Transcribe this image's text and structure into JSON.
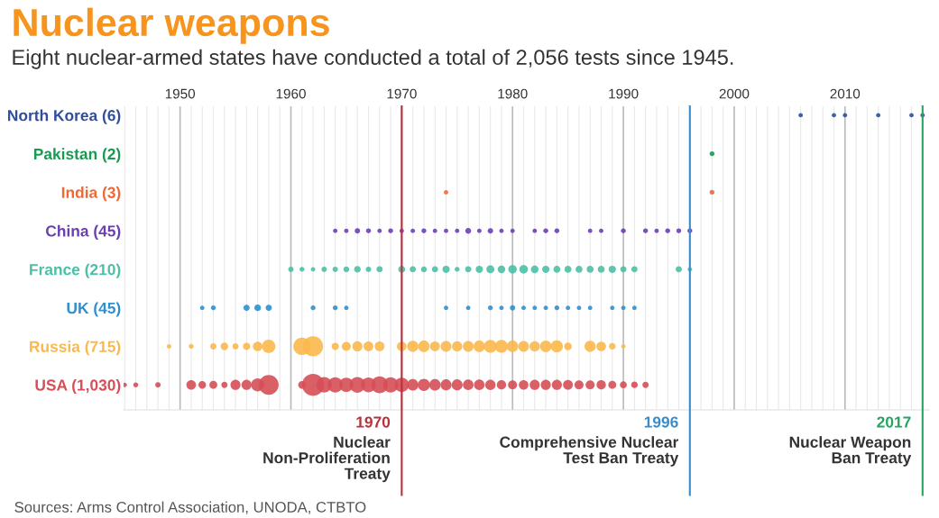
{
  "chart_data": {
    "type": "bubble",
    "title": "Nuclear weapons",
    "subtitle": "Eight nuclear-armed states have conducted a total of 2,056 tests since 1945.",
    "orientation": "horizontal",
    "categories": [
      "North Korea (6)",
      "Pakistan (2)",
      "India (3)",
      "China (45)",
      "France (210)",
      "UK (45)",
      "Russia (715)",
      "USA (1,030)"
    ],
    "colors": [
      "#2f4f9e",
      "#1a9a50",
      "#ee6a35",
      "#6a3fb5",
      "#4dbfa6",
      "#2f8fd0",
      "#fbb84d",
      "#d64f58"
    ],
    "xlim": [
      1944.9,
      2017.6
    ],
    "xticks": [
      {
        "value": 1950,
        "label": "1950"
      },
      {
        "value": 1960,
        "label": "1960"
      },
      {
        "value": 1970,
        "label": "1970"
      },
      {
        "value": 1980,
        "label": "1980"
      },
      {
        "value": 1990,
        "label": "1990"
      },
      {
        "value": 2000,
        "label": "2000"
      },
      {
        "value": 2010,
        "label": "2010"
      }
    ],
    "grid": "x",
    "series": [
      {
        "values": [
          null,
          null,
          null,
          null,
          null,
          null,
          null,
          1945
        ],
        "sizes": [
          null,
          null,
          null,
          null,
          null,
          null,
          null,
          0.04
        ],
        "colors": [
          null,
          null,
          null,
          null,
          null,
          null,
          null,
          "#d64f58"
        ]
      },
      {
        "values": [
          null,
          null,
          null,
          null,
          null,
          null,
          null,
          1946
        ],
        "sizes": [
          null,
          null,
          null,
          null,
          null,
          null,
          null,
          0.05
        ],
        "colors": [
          null,
          null,
          null,
          null,
          null,
          null,
          null,
          "#d64f58"
        ]
      },
      {
        "values": [
          null,
          null,
          null,
          null,
          null,
          null,
          null,
          1948
        ],
        "sizes": [
          null,
          null,
          null,
          null,
          null,
          null,
          null,
          0.06
        ],
        "colors": [
          null,
          null,
          null,
          null,
          null,
          null,
          null,
          "#d64f58"
        ]
      },
      {
        "values": [
          null,
          null,
          null,
          null,
          null,
          null,
          1949,
          null
        ],
        "sizes": [
          null,
          null,
          null,
          null,
          null,
          null,
          0.04,
          null
        ],
        "colors": [
          null,
          null,
          null,
          null,
          null,
          null,
          "#fbb84d",
          null
        ]
      },
      {
        "values": [
          null,
          null,
          null,
          null,
          null,
          null,
          1951,
          1951
        ],
        "sizes": [
          null,
          null,
          null,
          null,
          null,
          null,
          0.05,
          0.19
        ],
        "colors": [
          null,
          null,
          null,
          null,
          null,
          null,
          "#fbb84d",
          "#d64f58"
        ]
      },
      {
        "values": [
          null,
          null,
          null,
          null,
          null,
          1952,
          null,
          1952
        ],
        "sizes": [
          null,
          null,
          null,
          null,
          null,
          0.04,
          null,
          0.12
        ],
        "colors": [
          null,
          null,
          null,
          null,
          null,
          "#2f8fd0",
          null,
          "#d64f58"
        ]
      },
      {
        "values": [
          null,
          null,
          null,
          null,
          null,
          1953,
          1953,
          1953
        ],
        "sizes": [
          null,
          null,
          null,
          null,
          null,
          0.05,
          0.08,
          0.13
        ],
        "colors": [
          null,
          null,
          null,
          null,
          null,
          "#2f8fd0",
          "#fbb84d",
          "#d64f58"
        ]
      },
      {
        "values": [
          null,
          null,
          null,
          null,
          null,
          null,
          1954,
          1954
        ],
        "sizes": [
          null,
          null,
          null,
          null,
          null,
          null,
          0.12,
          0.08
        ],
        "colors": [
          null,
          null,
          null,
          null,
          null,
          null,
          "#fbb84d",
          "#d64f58"
        ]
      },
      {
        "values": [
          null,
          null,
          null,
          null,
          null,
          null,
          1955,
          1955
        ],
        "sizes": [
          null,
          null,
          null,
          null,
          null,
          null,
          0.08,
          0.21
        ],
        "colors": [
          null,
          null,
          null,
          null,
          null,
          null,
          "#fbb84d",
          "#d64f58"
        ]
      },
      {
        "values": [
          null,
          null,
          null,
          null,
          null,
          1956,
          1956,
          1956
        ],
        "sizes": [
          null,
          null,
          null,
          null,
          null,
          0.08,
          0.11,
          0.21
        ],
        "colors": [
          null,
          null,
          null,
          null,
          null,
          "#2f8fd0",
          "#fbb84d",
          "#d64f58"
        ]
      },
      {
        "values": [
          null,
          null,
          null,
          null,
          null,
          1957,
          1957,
          1957
        ],
        "sizes": [
          null,
          null,
          null,
          null,
          null,
          0.09,
          0.19,
          0.35
        ],
        "colors": [
          null,
          null,
          null,
          null,
          null,
          "#2f8fd0",
          "#fbb84d",
          "#d64f58"
        ]
      },
      {
        "values": [
          null,
          null,
          null,
          null,
          null,
          1958,
          1958,
          1958
        ],
        "sizes": [
          null,
          null,
          null,
          null,
          null,
          0.08,
          0.37,
          0.81
        ],
        "colors": [
          null,
          null,
          null,
          null,
          null,
          "#2f8fd0",
          "#fbb84d",
          "#d64f58"
        ]
      },
      {
        "values": [
          null,
          null,
          null,
          null,
          1960,
          null,
          null,
          null
        ],
        "sizes": [
          null,
          null,
          null,
          null,
          0.06,
          null,
          null,
          null
        ],
        "colors": [
          null,
          null,
          null,
          null,
          "#4dbfa6",
          null,
          null,
          null
        ]
      },
      {
        "values": [
          null,
          null,
          null,
          null,
          1961,
          null,
          1961,
          1961
        ],
        "sizes": [
          null,
          null,
          null,
          null,
          0.05,
          null,
          0.62,
          0.12
        ],
        "colors": [
          null,
          null,
          null,
          null,
          "#4dbfa6",
          null,
          "#fbb84d",
          "#d64f58"
        ]
      },
      {
        "values": [
          null,
          null,
          null,
          null,
          1962,
          1962,
          1962,
          1962
        ],
        "sizes": [
          null,
          null,
          null,
          null,
          0.04,
          0.05,
          0.83,
          1
        ],
        "colors": [
          null,
          null,
          null,
          null,
          "#4dbfa6",
          "#2f8fd0",
          "#fbb84d",
          "#d64f58"
        ]
      },
      {
        "values": [
          null,
          null,
          null,
          null,
          1963,
          null,
          null,
          1963
        ],
        "sizes": [
          null,
          null,
          null,
          null,
          0.06,
          null,
          null,
          0.5
        ],
        "colors": [
          null,
          null,
          null,
          null,
          "#4dbfa6",
          null,
          null,
          "#d64f58"
        ]
      },
      {
        "values": [
          null,
          null,
          null,
          1964,
          1964,
          1964,
          1964,
          1964
        ],
        "sizes": [
          null,
          null,
          null,
          0.04,
          0.06,
          0.05,
          0.11,
          0.48
        ],
        "colors": [
          null,
          null,
          null,
          "#6a3fb5",
          "#4dbfa6",
          "#2f8fd0",
          "#fbb84d",
          "#d64f58"
        ]
      },
      {
        "values": [
          null,
          null,
          null,
          1965,
          1965,
          1965,
          1965,
          1965
        ],
        "sizes": [
          null,
          null,
          null,
          0.04,
          0.07,
          0.04,
          0.17,
          0.42
        ],
        "colors": [
          null,
          null,
          null,
          "#6a3fb5",
          "#4dbfa6",
          "#2f8fd0",
          "#fbb84d",
          "#d64f58"
        ]
      },
      {
        "values": [
          null,
          null,
          null,
          1966,
          1966,
          null,
          1966,
          1966
        ],
        "sizes": [
          null,
          null,
          null,
          0.06,
          0.09,
          null,
          0.21,
          0.51
        ],
        "colors": [
          null,
          null,
          null,
          "#6a3fb5",
          "#4dbfa6",
          null,
          "#fbb84d",
          "#d64f58"
        ]
      },
      {
        "values": [
          null,
          null,
          null,
          1967,
          1967,
          null,
          1967,
          1967
        ],
        "sizes": [
          null,
          null,
          null,
          0.05,
          0.06,
          null,
          0.2,
          0.46
        ],
        "colors": [
          null,
          null,
          null,
          "#6a3fb5",
          "#4dbfa6",
          null,
          "#fbb84d",
          "#d64f58"
        ]
      },
      {
        "values": [
          null,
          null,
          null,
          1968,
          1968,
          null,
          1968,
          1968
        ],
        "sizes": [
          null,
          null,
          null,
          0.04,
          0.08,
          null,
          0.2,
          0.59
        ],
        "colors": [
          null,
          null,
          null,
          "#6a3fb5",
          "#4dbfa6",
          null,
          "#fbb84d",
          "#d64f58"
        ]
      },
      {
        "values": [
          null,
          null,
          null,
          1969,
          null,
          null,
          null,
          1969
        ],
        "sizes": [
          null,
          null,
          null,
          0.05,
          null,
          null,
          null,
          0.49
        ],
        "colors": [
          null,
          null,
          null,
          "#6a3fb5",
          null,
          null,
          null,
          "#d64f58"
        ]
      },
      {
        "values": [
          null,
          null,
          null,
          1970,
          1970,
          null,
          1970,
          1970
        ],
        "sizes": [
          null,
          null,
          null,
          0.04,
          0.1,
          null,
          0.19,
          0.43
        ],
        "colors": [
          null,
          null,
          null,
          "#6a3fb5",
          "#4dbfa6",
          null,
          "#fbb84d",
          "#d64f58"
        ]
      },
      {
        "values": [
          null,
          null,
          null,
          1971,
          1971,
          null,
          1971,
          1971
        ],
        "sizes": [
          null,
          null,
          null,
          0.04,
          0.08,
          null,
          0.26,
          0.27
        ],
        "colors": [
          null,
          null,
          null,
          "#6a3fb5",
          "#4dbfa6",
          null,
          "#fbb84d",
          "#d64f58"
        ]
      },
      {
        "values": [
          null,
          null,
          null,
          1972,
          1972,
          null,
          1972,
          1972
        ],
        "sizes": [
          null,
          null,
          null,
          0.05,
          0.07,
          null,
          0.27,
          0.3
        ],
        "colors": [
          null,
          null,
          null,
          "#6a3fb5",
          "#4dbfa6",
          null,
          "#fbb84d",
          "#d64f58"
        ]
      },
      {
        "values": [
          null,
          null,
          null,
          1973,
          1973,
          null,
          1973,
          1973
        ],
        "sizes": [
          null,
          null,
          null,
          0.04,
          0.08,
          null,
          0.2,
          0.27
        ],
        "colors": [
          null,
          null,
          null,
          "#6a3fb5",
          "#4dbfa6",
          null,
          "#fbb84d",
          "#d64f58"
        ]
      },
      {
        "values": [
          null,
          null,
          1974,
          1974,
          1974,
          1974,
          1974,
          1974
        ],
        "sizes": [
          null,
          null,
          0.04,
          0.04,
          0.11,
          0.04,
          0.24,
          0.25
        ],
        "colors": [
          null,
          null,
          "#ee6a35",
          "#6a3fb5",
          "#4dbfa6",
          "#2f8fd0",
          "#fbb84d",
          "#d64f58"
        ]
      },
      {
        "values": [
          null,
          null,
          null,
          1975,
          1975,
          null,
          1975,
          1975
        ],
        "sizes": [
          null,
          null,
          null,
          0.04,
          0.05,
          null,
          0.22,
          0.25
        ],
        "colors": [
          null,
          null,
          null,
          "#6a3fb5",
          "#4dbfa6",
          null,
          "#fbb84d",
          "#d64f58"
        ]
      },
      {
        "values": [
          null,
          null,
          null,
          1976,
          1976,
          1976,
          1976,
          1976
        ],
        "sizes": [
          null,
          null,
          null,
          0.07,
          0.08,
          0.04,
          0.24,
          0.23
        ],
        "colors": [
          null,
          null,
          null,
          "#6a3fb5",
          "#4dbfa6",
          "#2f8fd0",
          "#fbb84d",
          "#d64f58"
        ]
      },
      {
        "values": [
          null,
          null,
          null,
          1977,
          1977,
          null,
          1977,
          1977
        ],
        "sizes": [
          null,
          null,
          null,
          0.04,
          0.11,
          null,
          0.27,
          0.23
        ],
        "colors": [
          null,
          null,
          null,
          "#6a3fb5",
          "#4dbfa6",
          null,
          "#fbb84d",
          "#d64f58"
        ]
      },
      {
        "values": [
          null,
          null,
          null,
          1978,
          1978,
          1978,
          1978,
          1978
        ],
        "sizes": [
          null,
          null,
          null,
          0.06,
          0.13,
          0.05,
          0.34,
          0.22
        ],
        "colors": [
          null,
          null,
          null,
          "#6a3fb5",
          "#4dbfa6",
          "#2f8fd0",
          "#fbb84d",
          "#d64f58"
        ]
      },
      {
        "values": [
          null,
          null,
          null,
          1979,
          1979,
          1979,
          1979,
          1979
        ],
        "sizes": [
          null,
          null,
          null,
          0.04,
          0.12,
          0.04,
          0.34,
          0.18
        ],
        "colors": [
          null,
          null,
          null,
          "#6a3fb5",
          "#4dbfa6",
          "#2f8fd0",
          "#fbb84d",
          "#d64f58"
        ]
      },
      {
        "values": [
          null,
          null,
          null,
          1980,
          1980,
          1980,
          1980,
          1980
        ],
        "sizes": [
          null,
          null,
          null,
          0.04,
          0.15,
          0.06,
          0.27,
          0.17
        ],
        "colors": [
          null,
          null,
          null,
          "#6a3fb5",
          "#4dbfa6",
          "#2f8fd0",
          "#fbb84d",
          "#d64f58"
        ]
      },
      {
        "values": [
          null,
          null,
          null,
          null,
          1981,
          1981,
          1981,
          1981
        ],
        "sizes": [
          null,
          null,
          null,
          null,
          0.15,
          0.04,
          0.24,
          0.19
        ],
        "colors": [
          null,
          null,
          null,
          null,
          "#4dbfa6",
          "#2f8fd0",
          "#fbb84d",
          "#d64f58"
        ]
      },
      {
        "values": [
          null,
          null,
          null,
          1982,
          1982,
          1982,
          1982,
          1982
        ],
        "sizes": [
          null,
          null,
          null,
          0.04,
          0.12,
          0.04,
          0.22,
          0.21
        ],
        "colors": [
          null,
          null,
          null,
          "#6a3fb5",
          "#4dbfa6",
          "#2f8fd0",
          "#fbb84d",
          "#d64f58"
        ]
      },
      {
        "values": [
          null,
          null,
          null,
          1983,
          1983,
          1983,
          1983,
          1983
        ],
        "sizes": [
          null,
          null,
          null,
          0.05,
          0.11,
          0.04,
          0.28,
          0.21
        ],
        "colors": [
          null,
          null,
          null,
          "#6a3fb5",
          "#4dbfa6",
          "#2f8fd0",
          "#fbb84d",
          "#d64f58"
        ]
      },
      {
        "values": [
          null,
          null,
          null,
          1984,
          1984,
          1984,
          1984,
          1984
        ],
        "sizes": [
          null,
          null,
          null,
          0.05,
          0.1,
          0.05,
          0.3,
          0.21
        ],
        "colors": [
          null,
          null,
          null,
          "#6a3fb5",
          "#4dbfa6",
          "#2f8fd0",
          "#fbb84d",
          "#d64f58"
        ]
      },
      {
        "values": [
          null,
          null,
          null,
          null,
          1985,
          1985,
          1985,
          1985
        ],
        "sizes": [
          null,
          null,
          null,
          null,
          0.1,
          0.04,
          0.12,
          0.2
        ],
        "colors": [
          null,
          null,
          null,
          null,
          "#4dbfa6",
          "#2f8fd0",
          "#fbb84d",
          "#d64f58"
        ]
      },
      {
        "values": [
          null,
          null,
          null,
          null,
          1986,
          1986,
          null,
          1986
        ],
        "sizes": [
          null,
          null,
          null,
          null,
          0.1,
          0.04,
          null,
          0.17
        ],
        "colors": [
          null,
          null,
          null,
          null,
          "#4dbfa6",
          "#2f8fd0",
          null,
          "#d64f58"
        ]
      },
      {
        "values": [
          null,
          null,
          null,
          1987,
          1987,
          1987,
          1987,
          1987
        ],
        "sizes": [
          null,
          null,
          null,
          0.04,
          0.1,
          0.04,
          0.26,
          0.17
        ],
        "colors": [
          null,
          null,
          null,
          "#6a3fb5",
          "#4dbfa6",
          "#2f8fd0",
          "#fbb84d",
          "#d64f58"
        ]
      },
      {
        "values": [
          null,
          null,
          null,
          1988,
          1988,
          null,
          1988,
          1988
        ],
        "sizes": [
          null,
          null,
          null,
          0.04,
          0.1,
          null,
          0.19,
          0.18
        ],
        "colors": [
          null,
          null,
          null,
          "#6a3fb5",
          "#4dbfa6",
          null,
          "#fbb84d",
          "#d64f58"
        ]
      },
      {
        "values": [
          null,
          null,
          null,
          null,
          1989,
          1989,
          1989,
          1989
        ],
        "sizes": [
          null,
          null,
          null,
          null,
          0.11,
          0.04,
          0.09,
          0.13
        ],
        "colors": [
          null,
          null,
          null,
          null,
          "#4dbfa6",
          "#2f8fd0",
          "#fbb84d",
          "#d64f58"
        ]
      },
      {
        "values": [
          null,
          null,
          null,
          1990,
          1990,
          1990,
          1990,
          1990
        ],
        "sizes": [
          null,
          null,
          null,
          0.05,
          0.08,
          0.04,
          0.04,
          0.1
        ],
        "colors": [
          null,
          null,
          null,
          "#6a3fb5",
          "#4dbfa6",
          "#2f8fd0",
          "#fbb84d",
          "#d64f58"
        ]
      },
      {
        "values": [
          null,
          null,
          null,
          null,
          1991,
          1991,
          null,
          1991
        ],
        "sizes": [
          null,
          null,
          null,
          null,
          0.08,
          0.04,
          null,
          0.09
        ],
        "colors": [
          null,
          null,
          null,
          null,
          "#4dbfa6",
          "#2f8fd0",
          null,
          "#d64f58"
        ]
      },
      {
        "values": [
          null,
          null,
          null,
          1992,
          null,
          null,
          null,
          1992
        ],
        "sizes": [
          null,
          null,
          null,
          0.05,
          null,
          null,
          null,
          0.08
        ],
        "colors": [
          null,
          null,
          null,
          "#6a3fb5",
          null,
          null,
          null,
          "#d64f58"
        ]
      },
      {
        "values": [
          null,
          null,
          null,
          1993,
          null,
          null,
          null,
          null
        ],
        "sizes": [
          null,
          null,
          null,
          0.04,
          null,
          null,
          null,
          null
        ],
        "colors": [
          null,
          null,
          null,
          "#6a3fb5",
          null,
          null,
          null,
          null
        ]
      },
      {
        "values": [
          null,
          null,
          null,
          1994,
          null,
          null,
          null,
          null
        ],
        "sizes": [
          null,
          null,
          null,
          0.05,
          null,
          null,
          null,
          null
        ],
        "colors": [
          null,
          null,
          null,
          "#6a3fb5",
          null,
          null,
          null,
          null
        ]
      },
      {
        "values": [
          null,
          null,
          null,
          1995,
          1995,
          null,
          null,
          null
        ],
        "sizes": [
          null,
          null,
          null,
          0.05,
          0.08,
          null,
          null,
          null
        ],
        "colors": [
          null,
          null,
          null,
          "#6a3fb5",
          "#4dbfa6",
          null,
          null,
          null
        ]
      },
      {
        "values": [
          null,
          null,
          null,
          1996,
          1996,
          null,
          null,
          null
        ],
        "sizes": [
          null,
          null,
          null,
          0.05,
          0.04,
          null,
          null,
          null
        ],
        "colors": [
          null,
          null,
          null,
          "#6a3fb5",
          "#4dbfa6",
          null,
          null,
          null
        ]
      },
      {
        "values": [
          null,
          1998,
          1998,
          null,
          null,
          null,
          null,
          null
        ],
        "sizes": [
          null,
          0.05,
          0.05,
          null,
          null,
          null,
          null,
          null
        ],
        "colors": [
          null,
          "#1a9a50",
          "#ee6a35",
          null,
          null,
          null,
          null,
          null
        ]
      },
      {
        "values": [
          2006,
          null,
          null,
          null,
          null,
          null,
          null,
          null
        ],
        "sizes": [
          0.04,
          null,
          null,
          null,
          null,
          null,
          null,
          null
        ],
        "colors": [
          "#2f4f9e",
          null,
          null,
          null,
          null,
          null,
          null,
          null
        ]
      },
      {
        "values": [
          2009,
          null,
          null,
          null,
          null,
          null,
          null,
          null
        ],
        "sizes": [
          0.04,
          null,
          null,
          null,
          null,
          null,
          null,
          null
        ],
        "colors": [
          "#2f4f9e",
          null,
          null,
          null,
          null,
          null,
          null,
          null
        ]
      },
      {
        "values": [
          2010,
          null,
          null,
          null,
          null,
          null,
          null,
          null
        ],
        "sizes": [
          0.04,
          null,
          null,
          null,
          null,
          null,
          null,
          null
        ],
        "colors": [
          "#2f4f9e",
          null,
          null,
          null,
          null,
          null,
          null,
          null
        ]
      },
      {
        "values": [
          2013,
          null,
          null,
          null,
          null,
          null,
          null,
          null
        ],
        "sizes": [
          0.04,
          null,
          null,
          null,
          null,
          null,
          null,
          null
        ],
        "colors": [
          "#2f4f9e",
          null,
          null,
          null,
          null,
          null,
          null,
          null
        ]
      },
      {
        "values": [
          2016,
          null,
          null,
          null,
          null,
          null,
          null,
          null
        ],
        "sizes": [
          0.04,
          null,
          null,
          null,
          null,
          null,
          null,
          null
        ],
        "colors": [
          "#2f4f9e",
          null,
          null,
          null,
          null,
          null,
          null,
          null
        ]
      },
      {
        "values": [
          2017,
          null,
          null,
          null,
          null,
          null,
          null,
          null
        ],
        "sizes": [
          0.04,
          null,
          null,
          null,
          null,
          null,
          null,
          null
        ],
        "colors": [
          "#2f4f9e",
          null,
          null,
          null,
          null,
          null,
          null,
          null
        ]
      }
    ],
    "ref_lines": [
      {
        "axis": "x",
        "value": 1970,
        "label": "1970\nNuclear\nNon-Proliferation\nTreaty",
        "color": "#b8323c"
      },
      {
        "axis": "x",
        "value": 1996,
        "label": "1996\nComprehensive Nuclear\nTest Ban Treaty",
        "color": "#3a8cc8"
      },
      {
        "axis": "x",
        "value": 2017,
        "label": "2017\nNuclear Weapon\nBan Treaty",
        "color": "#27a463"
      }
    ],
    "annotations": [
      "Sources: Arms Control Association, UNODA, CTBTO"
    ]
  }
}
